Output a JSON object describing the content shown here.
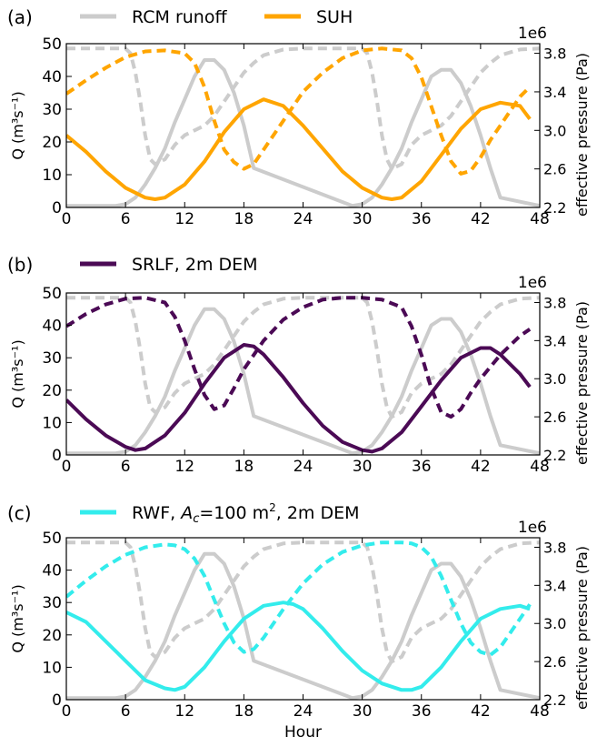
{
  "figure": {
    "xlabel_bottom": "Hour"
  },
  "colors": {
    "rcm": "#cccccc",
    "suh": "#ffa500",
    "srlf": "#4b0a55",
    "rwf": "#33ecec"
  },
  "chart_data": [
    {
      "type": "line",
      "panel_label": "(a)",
      "legend": [
        {
          "label": "RCM runoff",
          "color": "#cccccc"
        },
        {
          "label": "SUH",
          "color": "#ffa500"
        }
      ],
      "xlim": [
        0,
        48
      ],
      "xticks": [
        "0",
        "6",
        "12",
        "18",
        "24",
        "30",
        "36",
        "42",
        "48"
      ],
      "ylabel": "Q (m³s⁻¹)",
      "ylim": [
        0,
        50
      ],
      "yticks": [
        "0",
        "10",
        "20",
        "30",
        "40",
        "50"
      ],
      "y2label": "effective pressure (Pa)",
      "y2_offset": "1e6",
      "y2lim": [
        2.2,
        3.9
      ],
      "y2ticks": [
        "2.2",
        "2.6",
        "3.0",
        "3.4",
        "3.8"
      ],
      "series": [
        {
          "role": "RCM runoff (solid, left axis)",
          "axis": "left",
          "style": "solid",
          "color": "#cccccc",
          "x": [
            0,
            5,
            6,
            7,
            8,
            9,
            10,
            11,
            12,
            13,
            14,
            15,
            16,
            17,
            18,
            19,
            29,
            30,
            31,
            32,
            33,
            34,
            35,
            36,
            37,
            38,
            39,
            40,
            41,
            42,
            43,
            44,
            48
          ],
          "y": [
            0.5,
            0.5,
            1,
            3,
            7,
            12,
            18,
            26,
            33,
            40,
            45,
            45,
            42,
            35,
            25,
            12,
            0.5,
            1,
            3,
            7,
            12,
            18,
            26,
            33,
            40,
            42,
            42,
            38,
            31,
            22,
            12,
            3,
            0.5
          ]
        },
        {
          "role": "RCM runoff effective pressure (dashed, right axis)",
          "axis": "right",
          "style": "dashed",
          "color": "#cccccc",
          "x": [
            0,
            6,
            6.5,
            7,
            7.5,
            8,
            8.5,
            9,
            10,
            11,
            12,
            13,
            14,
            15,
            16,
            17,
            18,
            19,
            20,
            22,
            24,
            30,
            30.5,
            31,
            31.5,
            32,
            32.5,
            33,
            34,
            35,
            36,
            37,
            38,
            39,
            40,
            41,
            42,
            43,
            44,
            46,
            48
          ],
          "y": [
            3.85,
            3.85,
            3.8,
            3.6,
            3.3,
            2.95,
            2.7,
            2.65,
            2.7,
            2.85,
            2.95,
            3.0,
            3.05,
            3.15,
            3.3,
            3.45,
            3.6,
            3.7,
            3.78,
            3.84,
            3.85,
            3.85,
            3.8,
            3.6,
            3.3,
            2.95,
            2.7,
            2.6,
            2.65,
            2.85,
            2.95,
            3.0,
            3.05,
            3.15,
            3.3,
            3.45,
            3.6,
            3.7,
            3.78,
            3.84,
            3.85
          ]
        },
        {
          "role": "SUH discharge (solid, left axis)",
          "axis": "left",
          "style": "solid",
          "color": "#ffa500",
          "x": [
            0,
            2,
            4,
            6,
            8,
            9,
            10,
            12,
            14,
            16,
            18,
            20,
            22,
            24,
            26,
            28,
            30,
            32,
            33,
            34,
            36,
            38,
            40,
            42,
            44,
            46,
            47
          ],
          "y": [
            22,
            17,
            11,
            6,
            3,
            2.5,
            3,
            7,
            14,
            23,
            30,
            33,
            31,
            25,
            18,
            11,
            6,
            3,
            2.5,
            3,
            8,
            16,
            24,
            30,
            32,
            31,
            27
          ]
        },
        {
          "role": "SUH effective pressure (dashed, right axis)",
          "axis": "right",
          "style": "dashed",
          "color": "#ffa500",
          "x": [
            0,
            2,
            4,
            6,
            8,
            10,
            12,
            13,
            14,
            15,
            16,
            17,
            18,
            19,
            20,
            22,
            24,
            26,
            28,
            30,
            32,
            34,
            35,
            36,
            37,
            38,
            39,
            40,
            41,
            42,
            43,
            44,
            45,
            46,
            47
          ],
          "y": [
            3.38,
            3.52,
            3.65,
            3.76,
            3.82,
            3.83,
            3.8,
            3.7,
            3.45,
            3.1,
            2.8,
            2.67,
            2.6,
            2.65,
            2.8,
            3.1,
            3.4,
            3.6,
            3.75,
            3.83,
            3.85,
            3.83,
            3.75,
            3.55,
            3.25,
            2.95,
            2.68,
            2.55,
            2.58,
            2.72,
            2.9,
            3.05,
            3.2,
            3.35,
            3.45
          ]
        }
      ]
    },
    {
      "type": "line",
      "panel_label": "(b)",
      "legend": [
        {
          "label": "SRLF, 2m DEM",
          "color": "#4b0a55"
        }
      ],
      "xlim": [
        0,
        48
      ],
      "xticks": [
        "0",
        "6",
        "12",
        "18",
        "24",
        "30",
        "36",
        "42",
        "48"
      ],
      "ylabel": "Q (m³s⁻¹)",
      "ylim": [
        0,
        50
      ],
      "yticks": [
        "0",
        "10",
        "20",
        "30",
        "40",
        "50"
      ],
      "y2label": "effective pressure (Pa)",
      "y2_offset": "1e6",
      "y2lim": [
        2.2,
        3.9
      ],
      "y2ticks": [
        "2.2",
        "2.6",
        "3.0",
        "3.4",
        "3.8"
      ],
      "series": [
        {
          "role": "RCM runoff (solid, left axis)",
          "axis": "left",
          "style": "solid",
          "color": "#cccccc",
          "x": [
            0,
            5,
            6,
            7,
            8,
            9,
            10,
            11,
            12,
            13,
            14,
            15,
            16,
            17,
            18,
            19,
            29,
            30,
            31,
            32,
            33,
            34,
            35,
            36,
            37,
            38,
            39,
            40,
            41,
            42,
            43,
            44,
            48
          ],
          "y": [
            0.5,
            0.5,
            1,
            3,
            7,
            12,
            18,
            26,
            33,
            40,
            45,
            45,
            42,
            35,
            25,
            12,
            0.5,
            1,
            3,
            7,
            12,
            18,
            26,
            33,
            40,
            42,
            42,
            38,
            31,
            22,
            12,
            3,
            0.5
          ]
        },
        {
          "role": "RCM runoff effective pressure (dashed, right axis)",
          "axis": "right",
          "style": "dashed",
          "color": "#cccccc",
          "x": [
            0,
            6,
            6.5,
            7,
            7.5,
            8,
            8.5,
            9,
            10,
            11,
            12,
            13,
            14,
            15,
            16,
            17,
            18,
            19,
            20,
            22,
            24,
            30,
            30.5,
            31,
            31.5,
            32,
            32.5,
            33,
            34,
            35,
            36,
            37,
            38,
            39,
            40,
            41,
            42,
            43,
            44,
            46,
            48
          ],
          "y": [
            3.85,
            3.85,
            3.8,
            3.6,
            3.3,
            2.95,
            2.7,
            2.65,
            2.7,
            2.85,
            2.95,
            3.0,
            3.05,
            3.15,
            3.3,
            3.45,
            3.6,
            3.7,
            3.78,
            3.84,
            3.85,
            3.85,
            3.8,
            3.6,
            3.3,
            2.95,
            2.7,
            2.6,
            2.65,
            2.85,
            2.95,
            3.0,
            3.05,
            3.15,
            3.3,
            3.45,
            3.6,
            3.7,
            3.78,
            3.84,
            3.85
          ]
        },
        {
          "role": "SRLF discharge (solid, left axis)",
          "axis": "left",
          "style": "solid",
          "color": "#4b0a55",
          "x": [
            0,
            2,
            4,
            6,
            7,
            8,
            10,
            12,
            14,
            16,
            18,
            19,
            20,
            22,
            24,
            26,
            28,
            30,
            31,
            32,
            34,
            36,
            38,
            40,
            42,
            43,
            44,
            46,
            47
          ],
          "y": [
            17,
            11,
            6,
            2.5,
            1.5,
            2,
            6,
            13,
            22,
            30,
            34,
            33.5,
            31,
            24,
            16,
            9,
            4,
            1.5,
            1,
            2,
            7,
            15,
            23,
            30,
            33,
            33,
            31,
            25,
            21
          ]
        },
        {
          "role": "SRLF effective pressure (dashed, right axis)",
          "axis": "right",
          "style": "dashed",
          "color": "#4b0a55",
          "x": [
            0,
            2,
            4,
            6,
            8,
            10,
            11,
            12,
            13,
            14,
            15,
            16,
            17,
            18,
            20,
            22,
            24,
            26,
            28,
            30,
            32,
            34,
            35,
            36,
            37,
            38,
            39,
            40,
            41,
            42,
            44,
            46,
            47
          ],
          "y": [
            3.55,
            3.68,
            3.78,
            3.84,
            3.85,
            3.8,
            3.65,
            3.4,
            3.1,
            2.83,
            2.68,
            2.72,
            2.9,
            3.1,
            3.4,
            3.62,
            3.75,
            3.83,
            3.85,
            3.85,
            3.83,
            3.75,
            3.55,
            3.25,
            2.9,
            2.65,
            2.6,
            2.68,
            2.85,
            3.0,
            3.25,
            3.45,
            3.52
          ]
        }
      ]
    },
    {
      "type": "line",
      "panel_label": "(c)",
      "legend": [
        {
          "label": "RWF, A_c=100 m², 2m DEM",
          "color": "#33ecec"
        }
      ],
      "xlim": [
        0,
        48
      ],
      "xticks": [
        "0",
        "6",
        "12",
        "18",
        "24",
        "30",
        "36",
        "42",
        "48"
      ],
      "ylabel": "Q (m³s⁻¹)",
      "ylim": [
        0,
        50
      ],
      "yticks": [
        "0",
        "10",
        "20",
        "30",
        "40",
        "50"
      ],
      "y2label": "effective pressure (Pa)",
      "y2_offset": "1e6",
      "y2lim": [
        2.2,
        3.9
      ],
      "y2ticks": [
        "2.2",
        "2.6",
        "3.0",
        "3.4",
        "3.8"
      ],
      "xlabel": "Hour",
      "series": [
        {
          "role": "RCM runoff (solid, left axis)",
          "axis": "left",
          "style": "solid",
          "color": "#cccccc",
          "x": [
            0,
            5,
            6,
            7,
            8,
            9,
            10,
            11,
            12,
            13,
            14,
            15,
            16,
            17,
            18,
            19,
            29,
            30,
            31,
            32,
            33,
            34,
            35,
            36,
            37,
            38,
            39,
            40,
            41,
            42,
            43,
            44,
            48
          ],
          "y": [
            0.5,
            0.5,
            1,
            3,
            7,
            12,
            18,
            26,
            33,
            40,
            45,
            45,
            42,
            35,
            25,
            12,
            0.5,
            1,
            3,
            7,
            12,
            18,
            26,
            33,
            40,
            42,
            42,
            38,
            31,
            22,
            12,
            3,
            0.5
          ]
        },
        {
          "role": "RCM runoff effective pressure (dashed, right axis)",
          "axis": "right",
          "style": "dashed",
          "color": "#cccccc",
          "x": [
            0,
            6,
            6.5,
            7,
            7.5,
            8,
            8.5,
            9,
            10,
            11,
            12,
            13,
            14,
            15,
            16,
            17,
            18,
            19,
            20,
            22,
            24,
            30,
            30.5,
            31,
            31.5,
            32,
            32.5,
            33,
            34,
            35,
            36,
            37,
            38,
            39,
            40,
            41,
            42,
            43,
            44,
            46,
            48
          ],
          "y": [
            3.85,
            3.85,
            3.8,
            3.6,
            3.3,
            2.95,
            2.7,
            2.65,
            2.7,
            2.85,
            2.95,
            3.0,
            3.05,
            3.15,
            3.3,
            3.45,
            3.6,
            3.7,
            3.78,
            3.84,
            3.85,
            3.85,
            3.8,
            3.6,
            3.3,
            2.95,
            2.7,
            2.6,
            2.65,
            2.85,
            2.95,
            3.0,
            3.05,
            3.15,
            3.3,
            3.45,
            3.6,
            3.7,
            3.78,
            3.84,
            3.85
          ]
        },
        {
          "role": "RWF discharge (solid, left axis)",
          "axis": "left",
          "style": "solid",
          "color": "#33ecec",
          "x": [
            0,
            2,
            4,
            6,
            8,
            10,
            11,
            12,
            14,
            16,
            18,
            20,
            22,
            23,
            24,
            26,
            28,
            30,
            32,
            34,
            35,
            36,
            38,
            40,
            42,
            44,
            46,
            47
          ],
          "y": [
            27,
            24,
            18,
            12,
            6,
            3.5,
            3,
            4,
            10,
            18,
            25,
            29,
            30,
            29.5,
            28,
            22,
            15,
            9,
            5,
            3,
            3,
            4,
            10,
            18,
            25,
            28,
            29,
            28
          ]
        },
        {
          "role": "RWF effective pressure (dashed, right axis)",
          "axis": "right",
          "style": "dashed",
          "color": "#33ecec",
          "x": [
            0,
            2,
            4,
            6,
            8,
            10,
            11,
            12,
            13,
            14,
            15,
            16,
            17,
            18,
            19,
            20,
            22,
            24,
            26,
            28,
            30,
            32,
            34,
            35,
            36,
            37,
            38,
            39,
            40,
            41,
            42,
            43,
            44,
            45,
            46,
            47
          ],
          "y": [
            3.28,
            3.45,
            3.6,
            3.72,
            3.8,
            3.83,
            3.82,
            3.78,
            3.68,
            3.5,
            3.25,
            3.0,
            2.8,
            2.7,
            2.73,
            2.85,
            3.15,
            3.42,
            3.62,
            3.75,
            3.82,
            3.85,
            3.85,
            3.84,
            3.8,
            3.7,
            3.5,
            3.25,
            3.0,
            2.8,
            2.7,
            2.67,
            2.75,
            2.9,
            3.05,
            3.2
          ]
        }
      ]
    }
  ]
}
